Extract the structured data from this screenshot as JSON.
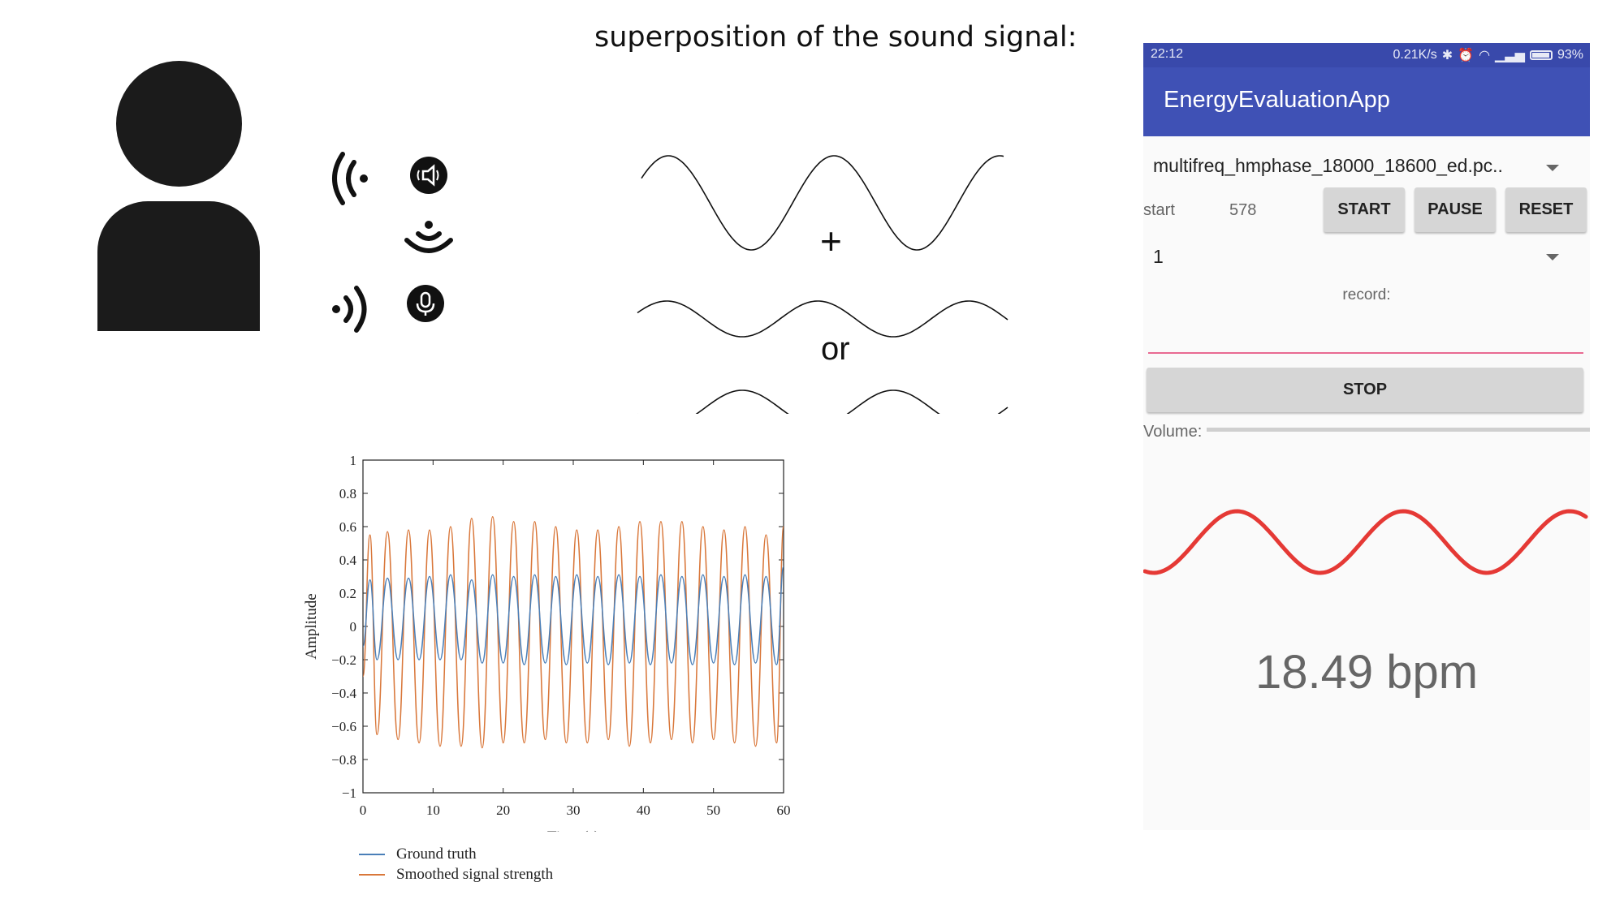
{
  "diagram": {
    "title": "superposition of the sound signal:",
    "operators": {
      "plus": "+",
      "or": "or"
    },
    "icons": {
      "person": "person-silhouette",
      "waves_out": "sound-waves-left-icon",
      "speaker": "speaker-icon",
      "sonar": "signal-arc-icon",
      "waves_in": "sound-waves-right-icon",
      "mic": "microphone-icon"
    }
  },
  "chart_data": {
    "type": "line",
    "xlabel": "Time (s)",
    "ylabel": "Amplitude",
    "xlim": [
      0,
      60
    ],
    "ylim": [
      -1,
      1
    ],
    "x_ticks": [
      "0",
      "10",
      "20",
      "30",
      "40",
      "50",
      "60"
    ],
    "y_ticks": [
      "1",
      "0.8",
      "0.6",
      "0.4",
      "0.2",
      "0",
      "−0.2",
      "−0.4",
      "−0.6",
      "−0.8",
      "−1"
    ],
    "legend_position": "bottom-left",
    "series": [
      {
        "name": "Ground truth",
        "color": "#4a7fb8",
        "x": [
          0,
          1,
          2,
          3.5,
          5,
          6.5,
          8,
          9.5,
          11,
          12.5,
          14,
          15.5,
          17,
          18.5,
          20,
          21.5,
          23,
          24.5,
          26,
          27.5,
          29,
          30.5,
          32,
          33.5,
          35,
          36.5,
          38,
          39.5,
          41,
          42.5,
          44,
          45.5,
          47,
          48.5,
          50,
          51.5,
          53,
          54.5,
          56,
          57.5,
          59,
          60
        ],
        "y": [
          -0.12,
          0.28,
          -0.2,
          0.29,
          -0.2,
          0.29,
          -0.2,
          0.3,
          -0.2,
          0.31,
          -0.2,
          0.28,
          -0.22,
          0.31,
          -0.22,
          0.3,
          -0.23,
          0.31,
          -0.22,
          0.3,
          -0.23,
          0.31,
          -0.22,
          0.3,
          -0.23,
          0.31,
          -0.22,
          0.3,
          -0.23,
          0.31,
          -0.22,
          0.3,
          -0.23,
          0.31,
          -0.22,
          0.3,
          -0.23,
          0.31,
          -0.22,
          0.3,
          -0.23,
          0.36
        ]
      },
      {
        "name": "Smoothed signal strength",
        "color": "#d9773a",
        "x": [
          0,
          1,
          2,
          3.5,
          5,
          6.5,
          8,
          9.5,
          11,
          12.5,
          14,
          15.5,
          17,
          18.5,
          20,
          21.5,
          23,
          24.5,
          26,
          27.5,
          29,
          30.5,
          32,
          33.5,
          35,
          36.5,
          38,
          39.5,
          41,
          42.5,
          44,
          45.5,
          47,
          48.5,
          50,
          51.5,
          53,
          54.5,
          56,
          57.5,
          59,
          60
        ],
        "y": [
          -0.3,
          0.55,
          -0.65,
          0.57,
          -0.68,
          0.58,
          -0.7,
          0.58,
          -0.72,
          0.6,
          -0.72,
          0.65,
          -0.73,
          0.66,
          -0.7,
          0.63,
          -0.7,
          0.63,
          -0.68,
          0.6,
          -0.7,
          0.58,
          -0.7,
          0.58,
          -0.68,
          0.6,
          -0.72,
          0.63,
          -0.7,
          0.63,
          -0.68,
          0.63,
          -0.7,
          0.6,
          -0.68,
          0.58,
          -0.7,
          0.6,
          -0.72,
          0.55,
          -0.7,
          0.6
        ]
      }
    ]
  },
  "phone": {
    "status": {
      "time": "22:12",
      "speed": "0.21K/s",
      "battery": "93%"
    },
    "app_title": "EnergyEvaluationApp",
    "file_spinner": "multifreq_hmphase_18000_18600_ed.pc..",
    "start_label": "start",
    "start_value": "578",
    "buttons": {
      "start": "START",
      "pause": "PAUSE",
      "reset": "RESET",
      "stop": "STOP"
    },
    "mode_spinner": "1",
    "record_label": "record:",
    "record_value": "",
    "volume_label": "Volume:",
    "waveform_color": "#e53935",
    "bpm": "18.49 bpm"
  }
}
